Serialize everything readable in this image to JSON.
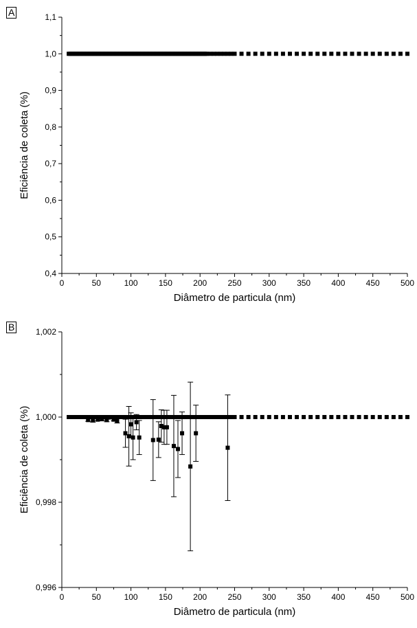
{
  "chart_data": [
    {
      "panel": "A",
      "type": "scatter",
      "title": "",
      "xlabel": "Diâmetro de particula (nm)",
      "ylabel": "Eficiência de coleta (%)",
      "xlim": [
        0,
        500
      ],
      "ylim": [
        0.4,
        1.1
      ],
      "xticks": [
        "0",
        "50",
        "100",
        "150",
        "200",
        "250",
        "300",
        "350",
        "400",
        "450",
        "500"
      ],
      "yticks": [
        "0,4",
        "0,5",
        "0,6",
        "0,7",
        "0,8",
        "0,9",
        "1,0",
        "1,1"
      ],
      "series": [
        {
          "x": [
            10,
            12,
            14,
            16,
            18,
            20,
            22,
            24,
            26,
            28,
            30,
            32,
            34,
            36,
            38,
            40,
            42,
            44,
            46,
            48,
            50,
            52,
            54,
            56,
            58,
            60,
            62,
            64,
            66,
            68,
            70,
            72,
            74,
            76,
            78,
            80,
            82,
            84,
            86,
            88,
            90,
            92,
            94,
            96,
            98,
            100,
            102,
            104,
            106,
            108,
            110,
            112,
            114,
            116,
            118,
            120,
            122,
            124,
            126,
            128,
            130,
            132,
            134,
            136,
            138,
            140,
            142,
            144,
            146,
            148,
            150,
            152,
            154,
            156,
            158,
            160,
            162,
            164,
            166,
            168,
            170,
            172,
            174,
            176,
            178,
            180,
            182,
            184,
            186,
            188,
            190,
            192,
            194,
            196,
            198,
            200,
            202,
            204,
            206,
            208,
            210,
            215,
            220,
            225,
            230,
            235,
            240,
            245,
            250,
            260,
            270,
            280,
            290,
            300,
            310,
            320,
            330,
            340,
            350,
            360,
            370,
            380,
            390,
            400,
            410,
            420,
            430,
            440,
            450,
            460,
            470,
            480,
            490,
            500
          ],
          "y": [
            1,
            1,
            1,
            1,
            1,
            1,
            1,
            1,
            1,
            1,
            1,
            1,
            1,
            1,
            1,
            1,
            1,
            1,
            1,
            1,
            1,
            1,
            1,
            1,
            1,
            1,
            1,
            1,
            1,
            1,
            1,
            1,
            1,
            1,
            1,
            1,
            1,
            1,
            1,
            1,
            1,
            1,
            1,
            1,
            1,
            1,
            1,
            1,
            1,
            1,
            1,
            1,
            1,
            1,
            1,
            1,
            1,
            1,
            1,
            1,
            1,
            1,
            1,
            1,
            1,
            1,
            1,
            1,
            1,
            1,
            1,
            1,
            1,
            1,
            1,
            1,
            1,
            1,
            1,
            1,
            1,
            1,
            1,
            1,
            1,
            1,
            1,
            1,
            1,
            1,
            1,
            1,
            1,
            1,
            1,
            1,
            1,
            1,
            1,
            1,
            1,
            1,
            1,
            1,
            1,
            1,
            1,
            1,
            1,
            1,
            1,
            1,
            1,
            1,
            1,
            1,
            1,
            1,
            1,
            1,
            1,
            1,
            1,
            1,
            1,
            1,
            1,
            1,
            1,
            1,
            1,
            1,
            1,
            1
          ]
        }
      ]
    },
    {
      "panel": "B",
      "type": "scatter",
      "title": "",
      "xlabel": "Diâmetro de particula (nm)",
      "ylabel": "Eficiência de coleta (%)",
      "xlim": [
        0,
        500
      ],
      "ylim": [
        0.996,
        1.002
      ],
      "xticks": [
        "0",
        "50",
        "100",
        "150",
        "200",
        "250",
        "300",
        "350",
        "400",
        "450",
        "500"
      ],
      "yticks": [
        "0,996",
        "0,998",
        "1,000",
        "1,002"
      ],
      "series": [
        {
          "x": [
            10,
            12,
            14,
            16,
            18,
            20,
            22,
            24,
            26,
            28,
            30,
            32,
            34,
            36,
            38,
            40,
            42,
            44,
            46,
            48,
            50,
            52,
            54,
            56,
            58,
            60,
            62,
            64,
            66,
            68,
            70,
            72,
            74,
            76,
            78,
            80,
            82,
            84,
            86,
            88,
            90,
            92,
            94,
            96,
            98,
            100,
            102,
            104,
            106,
            108,
            110,
            112,
            114,
            116,
            118,
            120,
            122,
            124,
            126,
            128,
            130,
            132,
            134,
            136,
            138,
            140,
            142,
            144,
            146,
            148,
            150,
            152,
            154,
            156,
            158,
            160,
            162,
            164,
            166,
            168,
            170,
            172,
            174,
            176,
            178,
            180,
            182,
            184,
            186,
            188,
            190,
            192,
            194,
            196,
            198,
            200,
            202,
            204,
            206,
            208,
            210,
            215,
            220,
            225,
            230,
            235,
            240,
            245,
            250,
            260,
            270,
            280,
            290,
            300,
            310,
            320,
            330,
            340,
            350,
            360,
            370,
            380,
            390,
            400,
            410,
            420,
            430,
            440,
            450,
            460,
            470,
            480,
            490,
            500
          ],
          "y": [
            1,
            1,
            1,
            1,
            1,
            1,
            1,
            1,
            1,
            1,
            1,
            1,
            1,
            1,
            1,
            1,
            1,
            1,
            1,
            1,
            1,
            1,
            1,
            1,
            1,
            1,
            1,
            1,
            1,
            1,
            1,
            1,
            1,
            1,
            1,
            1,
            1,
            1,
            1,
            1,
            1,
            1,
            1,
            1,
            1,
            1,
            1,
            1,
            1,
            1,
            1,
            1,
            1,
            1,
            1,
            1,
            1,
            1,
            1,
            1,
            1,
            1,
            1,
            1,
            1,
            1,
            1,
            1,
            1,
            1,
            1,
            1,
            1,
            1,
            1,
            1,
            1,
            1,
            1,
            1,
            1,
            1,
            1,
            1,
            1,
            1,
            1,
            1,
            1,
            1,
            1,
            1,
            1,
            1,
            1,
            1,
            1,
            1,
            1,
            1,
            1,
            1,
            1,
            1,
            1,
            1,
            1,
            1,
            1,
            1,
            1,
            1,
            1,
            1,
            1,
            1,
            1,
            1,
            1,
            1,
            1,
            1,
            1,
            1,
            1,
            1,
            1,
            1,
            1,
            1,
            1,
            1,
            1,
            1
          ]
        },
        {
          "x": [
            38,
            45,
            52,
            58,
            65,
            68,
            75,
            80,
            92,
            97,
            100,
            103,
            108,
            112,
            132,
            140,
            144,
            148,
            152,
            162,
            168,
            174,
            186,
            194,
            240
          ],
          "y": [
            0.99993,
            0.99992,
            0.99994,
            0.99995,
            0.99993,
            0.99999,
            0.99994,
            0.99991,
            0.99962,
            0.99955,
            0.99983,
            0.99952,
            0.99988,
            0.99952,
            0.99946,
            0.99947,
            0.99979,
            0.99976,
            0.99976,
            0.99932,
            0.99925,
            0.99962,
            0.99884,
            0.99962,
            0.99928
          ],
          "err": [
            3e-05,
            4e-05,
            3e-05,
            3e-05,
            4e-05,
            3e-05,
            3e-05,
            5e-05,
            0.00033,
            0.0007,
            0.00027,
            0.00052,
            0.00018,
            0.0004,
            0.00095,
            0.00042,
            0.00038,
            0.0004,
            0.0004,
            0.00119,
            0.00067,
            0.0005,
            0.00198,
            0.00066,
            0.00124
          ]
        }
      ]
    }
  ]
}
